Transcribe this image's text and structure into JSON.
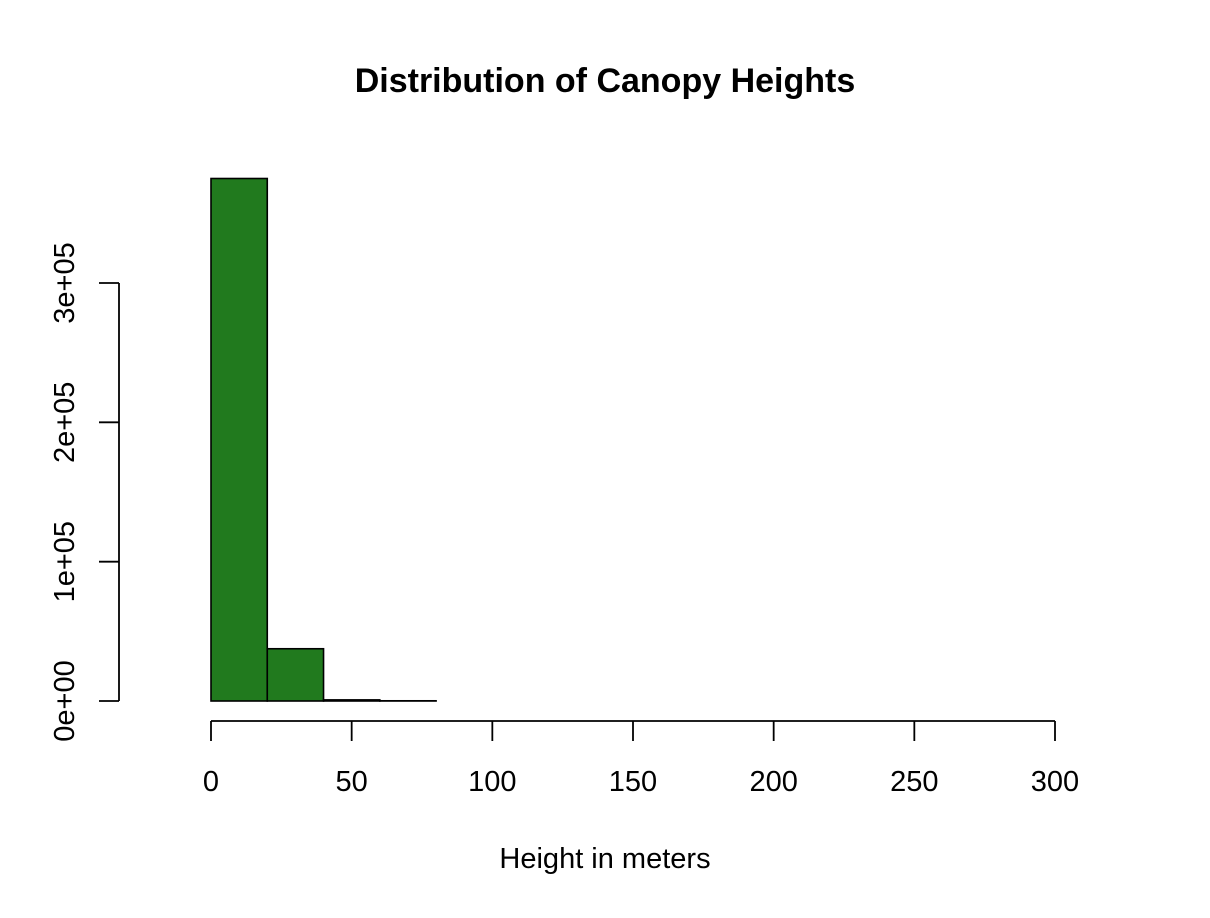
{
  "chart_data": {
    "type": "bar",
    "title": "Distribution of Canopy Heights",
    "xlabel": "Height in meters",
    "ylabel": "",
    "bar_color": "#217A1E",
    "bins": [
      {
        "x0": -20,
        "x1": 0,
        "count": 0
      },
      {
        "x0": 0,
        "x1": 20,
        "count": 375000
      },
      {
        "x0": 20,
        "x1": 40,
        "count": 37500
      },
      {
        "x0": 40,
        "x1": 60,
        "count": 800
      },
      {
        "x0": 60,
        "x1": 80,
        "count": 150
      },
      {
        "x0": 80,
        "x1": 100,
        "count": 0
      },
      {
        "x0": 100,
        "x1": 120,
        "count": 0
      },
      {
        "x0": 120,
        "x1": 140,
        "count": 0
      },
      {
        "x0": 140,
        "x1": 160,
        "count": 0
      },
      {
        "x0": 160,
        "x1": 180,
        "count": 0
      },
      {
        "x0": 180,
        "x1": 200,
        "count": 0
      },
      {
        "x0": 200,
        "x1": 220,
        "count": 0
      },
      {
        "x0": 220,
        "x1": 240,
        "count": 0
      },
      {
        "x0": 240,
        "x1": 260,
        "count": 0
      },
      {
        "x0": 260,
        "x1": 280,
        "count": 0
      },
      {
        "x0": 280,
        "x1": 300,
        "count": 0
      }
    ],
    "xticks": [
      0,
      50,
      100,
      150,
      200,
      250,
      300
    ],
    "xtick_labels": [
      "0",
      "50",
      "100",
      "150",
      "200",
      "250",
      "300"
    ],
    "yticks": [
      0,
      100000,
      200000,
      300000
    ],
    "ytick_labels": [
      "0e+00",
      "1e+05",
      "2e+05",
      "3e+05"
    ],
    "xlim": [
      -20,
      300
    ],
    "ylim": [
      0,
      375000
    ],
    "grid": false,
    "legend": "none"
  }
}
